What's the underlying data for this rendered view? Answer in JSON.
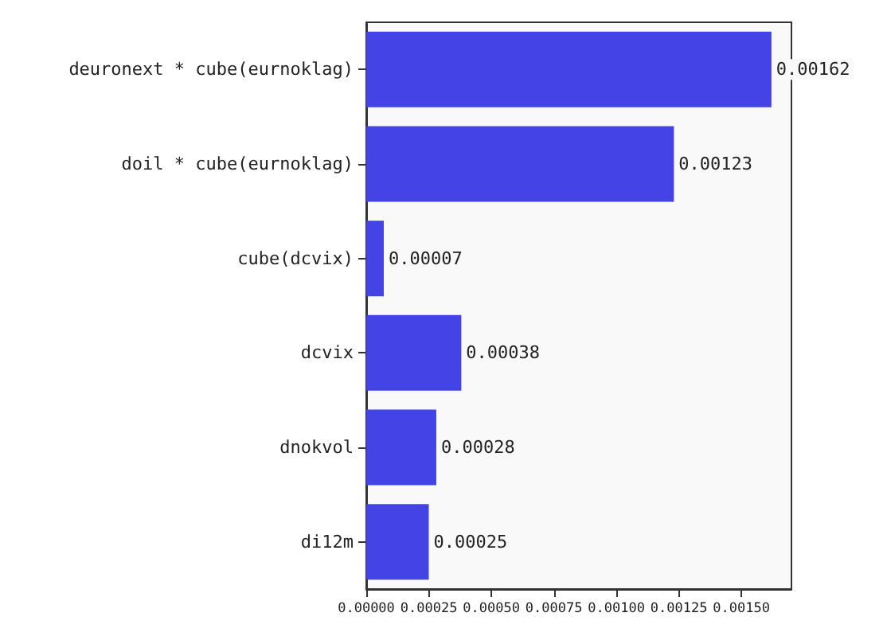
{
  "chart_data": {
    "type": "bar",
    "orientation": "horizontal",
    "categories": [
      "deuronext * cube(eurnoklag)",
      "doil * cube(eurnoklag)",
      "cube(dcvix)",
      "dcvix",
      "dnokvol",
      "di12m"
    ],
    "values": [
      0.00162,
      0.00123,
      7e-05,
      0.00038,
      0.00028,
      0.00025
    ],
    "color": "#4444e6",
    "value_labels": [
      "0.00162",
      "0.00123",
      "0.00007",
      "0.00038",
      "0.00028",
      "0.00025"
    ],
    "xlim": [
      0,
      0.0017
    ],
    "xticks": [
      {
        "value": 0,
        "label": "0.00000"
      },
      {
        "value": 0.00025,
        "label": "0.00025"
      },
      {
        "value": 0.0005,
        "label": "0.00050"
      },
      {
        "value": 0.00075,
        "label": "0.00075"
      },
      {
        "value": 0.001,
        "label": "0.00100"
      },
      {
        "value": 0.00125,
        "label": "0.00125"
      },
      {
        "value": 0.0015,
        "label": "0.00150"
      }
    ],
    "grid": false
  }
}
